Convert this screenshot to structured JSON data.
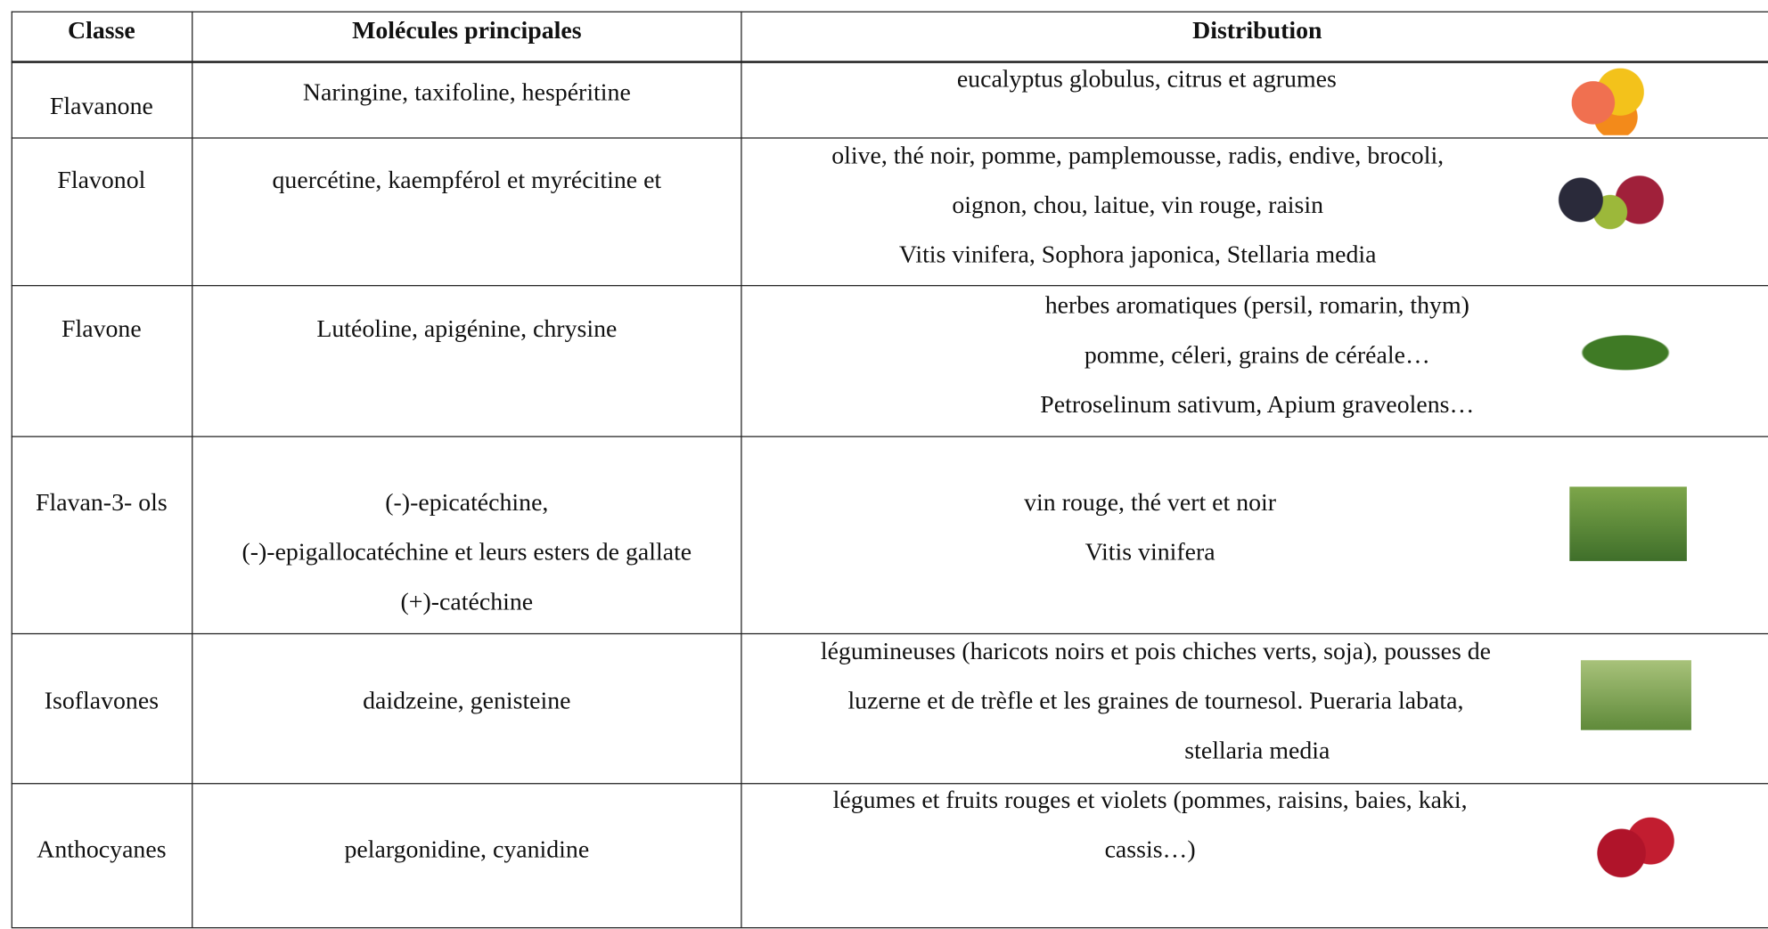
{
  "table": {
    "header": [
      "Classe",
      "Molécules principales",
      "Distribution"
    ],
    "rows": [
      {
        "classe": "Flavanone",
        "molecules": [
          "Naringine, taxifoline, hespéritine"
        ],
        "distribution": [
          "eucalyptus globulus, citrus et agrumes"
        ]
      },
      {
        "classe": "Flavonol",
        "molecules": [
          "quercétine, kaempférol et myrécitine et"
        ],
        "distribution": [
          "olive, thé noir, pomme, pamplemousse, radis, endive, brocoli,",
          "oignon, chou, laitue, vin rouge, raisin",
          "Vitis vinifera, Sophora japonica, Stellaria media"
        ]
      },
      {
        "classe": "Flavone",
        "molecules": [
          "Lutéoline, apigénine, chrysine"
        ],
        "distribution": [
          "herbes aromatiques (persil, romarin, thym)",
          "pomme, céleri, grains de céréale…",
          "Petroselinum sativum, Apium graveolens…"
        ]
      },
      {
        "classe": "Flavan-3- ols",
        "molecules": [
          "(-)-epicatéchine,",
          "(-)-epigallocatéchine et leurs esters de gallate",
          "(+)-catéchine"
        ],
        "distribution": [
          "vin rouge, thé vert et noir",
          "Vitis vinifera"
        ]
      },
      {
        "classe": "Isoflavones",
        "molecules": [
          "daidzeine, genisteine"
        ],
        "distribution": [
          "légumineuses (haricots noirs et pois chiches verts, soja), pousses de",
          "luzerne et de trèfle et les graines de tournesol. Pueraria labata,",
          "stellaria media"
        ]
      },
      {
        "classe": "Anthocyanes",
        "molecules": [
          "pelargonidine, cyanidine"
        ],
        "distribution": [
          "légumes et fruits rouges et violets (pommes, raisins, baies, kaki,",
          "cassis…)"
        ]
      }
    ]
  }
}
